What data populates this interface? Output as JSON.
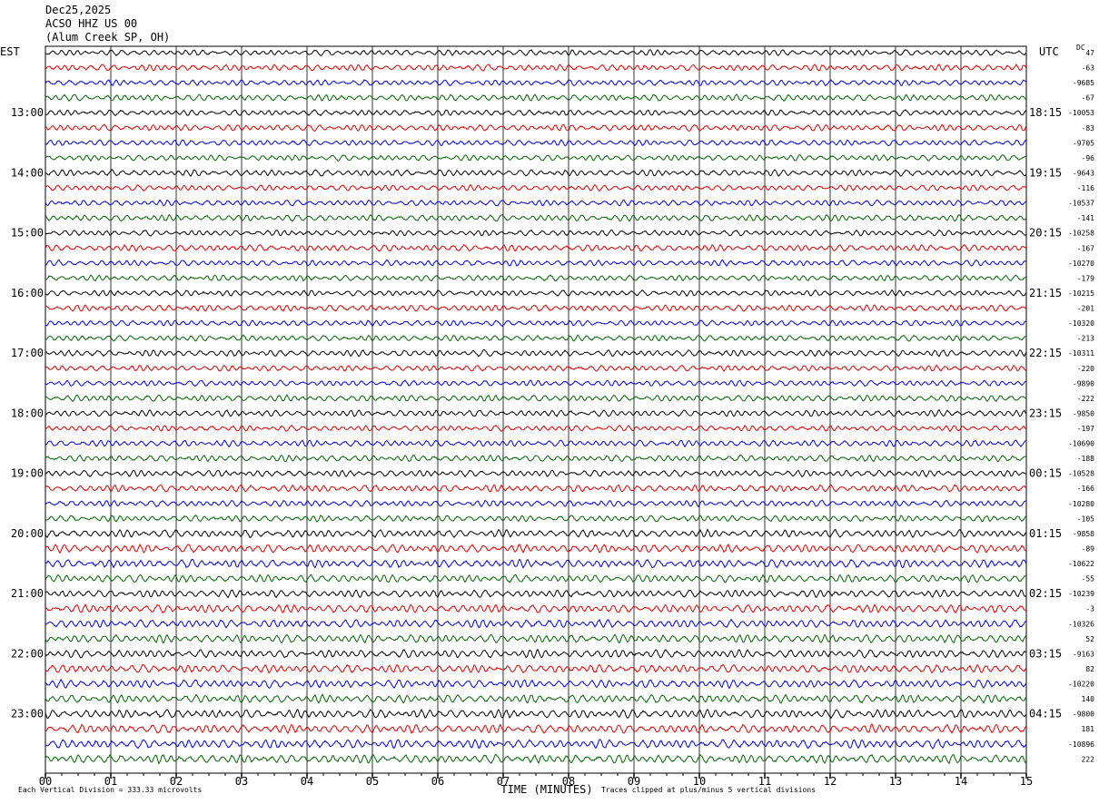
{
  "header": {
    "date": "Dec25,2025",
    "station": "ACSO HHZ US 00",
    "location": "(Alum Creek SP, OH)"
  },
  "left_zone_label": "EST",
  "right_zone_label": "UTC",
  "dc_label": "DC",
  "footer": {
    "scale_note": "Each Vertical Division =  333.33 microvolts",
    "clip_note": "Traces clipped at plus/minus 5 vertical divisions"
  },
  "colors": {
    "trace_cycle": [
      "#000000",
      "#e00000",
      "#0000e0",
      "#006400"
    ],
    "gridline": "#000000",
    "background": "#ffffff"
  },
  "chart_data": {
    "type": "line",
    "title": "",
    "xlabel": "TIME (MINUTES)",
    "ylabel": "",
    "xlim": [
      0,
      15
    ],
    "x_ticks": [
      "00",
      "01",
      "02",
      "03",
      "04",
      "05",
      "06",
      "07",
      "08",
      "09",
      "10",
      "11",
      "12",
      "13",
      "14",
      "15"
    ],
    "trace_minutes": 15,
    "traces_per_hour": 4,
    "grid": "vertical at each minute",
    "left_hour_labels": [
      {
        "row": 4,
        "label": "13:00"
      },
      {
        "row": 8,
        "label": "14:00"
      },
      {
        "row": 12,
        "label": "15:00"
      },
      {
        "row": 16,
        "label": "16:00"
      },
      {
        "row": 20,
        "label": "17:00"
      },
      {
        "row": 24,
        "label": "18:00"
      },
      {
        "row": 28,
        "label": "19:00"
      },
      {
        "row": 32,
        "label": "20:00"
      },
      {
        "row": 36,
        "label": "21:00"
      },
      {
        "row": 40,
        "label": "22:00"
      },
      {
        "row": 44,
        "label": "23:00"
      }
    ],
    "right_hour_labels": [
      {
        "row": 4,
        "label": "18:15"
      },
      {
        "row": 8,
        "label": "19:15"
      },
      {
        "row": 12,
        "label": "20:15"
      },
      {
        "row": 16,
        "label": "21:15"
      },
      {
        "row": 20,
        "label": "22:15"
      },
      {
        "row": 24,
        "label": "23:15"
      },
      {
        "row": 28,
        "label": "00:15"
      },
      {
        "row": 32,
        "label": "01:15"
      },
      {
        "row": 36,
        "label": "02:15"
      },
      {
        "row": 40,
        "label": "03:15"
      },
      {
        "row": 44,
        "label": "04:15"
      }
    ],
    "dc_offsets": [
      "47",
      "-63",
      "-9685",
      "-67",
      "-10053",
      "-83",
      "-9705",
      "-96",
      "-9643",
      "-116",
      "-10537",
      "-141",
      "-10258",
      "-167",
      "-10270",
      "-179",
      "-10215",
      "-201",
      "-10320",
      "-213",
      "-10311",
      "-220",
      "-9890",
      "-222",
      "-9850",
      "-197",
      "-10690",
      "-188",
      "-10528",
      "-166",
      "-10280",
      "-105",
      "-9858",
      "-89",
      "-10622",
      "-55",
      "-10239",
      "-3",
      "-10326",
      "52",
      "-9163",
      "82",
      "-10220",
      "140",
      "-9800",
      "181",
      "-10896",
      "222"
    ],
    "series_amplitude_divisions": [
      1.0,
      1.1,
      1.0,
      1.1,
      1.0,
      1.1,
      1.0,
      1.0,
      1.1,
      1.0,
      1.0,
      1.1,
      1.0,
      1.1,
      1.0,
      1.0,
      1.0,
      1.1,
      1.0,
      1.0,
      1.1,
      1.0,
      1.0,
      1.1,
      1.1,
      1.0,
      1.1,
      1.1,
      1.1,
      1.2,
      1.1,
      1.1,
      1.3,
      1.4,
      1.4,
      1.3,
      1.3,
      1.4,
      1.4,
      1.4,
      1.4,
      1.4,
      1.4,
      1.4,
      1.5,
      1.5,
      1.5,
      1.5
    ]
  }
}
